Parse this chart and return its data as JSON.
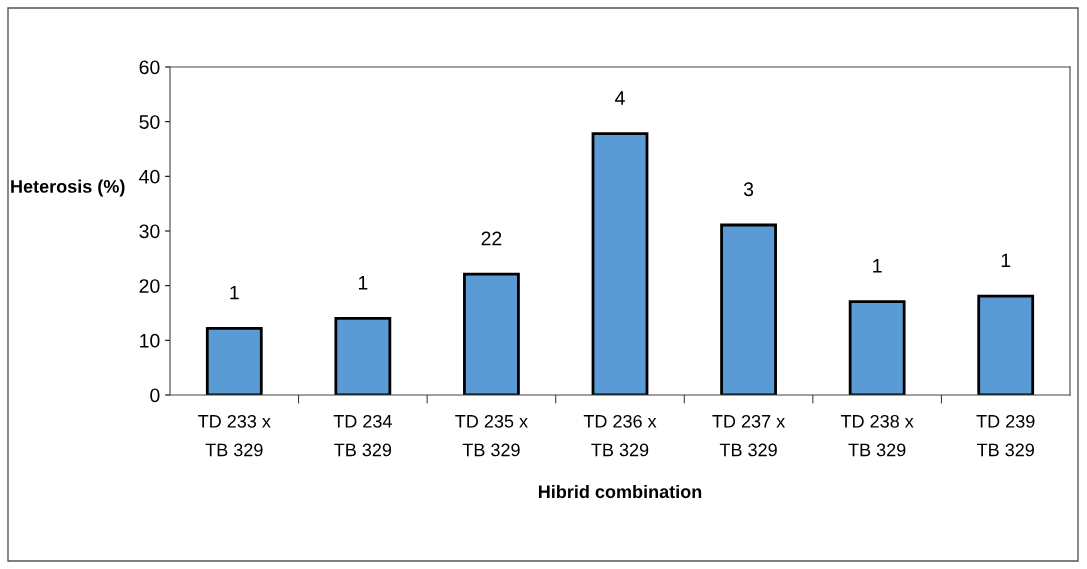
{
  "chart_data": {
    "type": "bar",
    "xlabel": "Hibrid combination",
    "ylabel": "Heterosis (%)",
    "categories": [
      "TD 233 x\nTB 329",
      "TD 234\nTB 329",
      "TD 235 x\nTB 329",
      "TD 236 x\nTB 329",
      "TD 237 x\nTB 329",
      "TD 238 x\nTB 329",
      "TD 239\nTB 329"
    ],
    "values": [
      12.2,
      14.0,
      22.1,
      47.8,
      31.1,
      17.1,
      18.1
    ],
    "annotations": [
      {
        "text": "1",
        "x": "TD 233 x\nTB 329",
        "y": 12.2
      },
      {
        "text": "1",
        "x": "TD 234\nTB 329",
        "y": 14.0
      },
      {
        "text": "22",
        "x": "TD 235 x\nTB 329",
        "y": 22.1
      },
      {
        "text": "4",
        "x": "TD 236 x\nTB 329",
        "y": 47.8
      },
      {
        "text": "3",
        "x": "TD 237 x\nTB 329",
        "y": 31.1
      },
      {
        "text": "1",
        "x": "TD 238 x\nTB 329",
        "y": 17.1
      },
      {
        "text": "1",
        "x": "TD 239\nTB 329",
        "y": 18.1
      }
    ],
    "color": "#5b9bd5",
    "ylim": [
      0,
      60
    ],
    "yticks": [
      0,
      10,
      20,
      30,
      40,
      50,
      60
    ],
    "grid": false,
    "legend": false
  }
}
